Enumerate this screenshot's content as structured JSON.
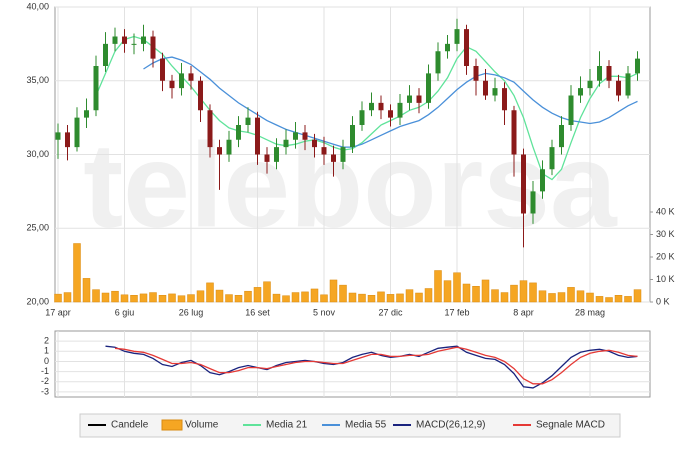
{
  "watermark": "teleborsa",
  "chart_data": [
    {
      "type": "candlestick",
      "candle_name": "Candele",
      "up_color": "#2e8b2e",
      "down_color": "#8b1a1a",
      "categories": [
        "17 apr",
        null,
        null,
        null,
        null,
        null,
        null,
        "6 giu",
        null,
        null,
        null,
        null,
        null,
        null,
        "26 lug",
        null,
        null,
        null,
        null,
        null,
        null,
        "16 set",
        null,
        null,
        null,
        null,
        null,
        null,
        "5 nov",
        null,
        null,
        null,
        null,
        null,
        null,
        "27 dic",
        null,
        null,
        null,
        null,
        null,
        null,
        "17 feb",
        null,
        null,
        null,
        null,
        null,
        null,
        "8 apr",
        null,
        null,
        null,
        null,
        null,
        null,
        "28 mag",
        null,
        null,
        null,
        null,
        null
      ],
      "open": [
        31,
        31.5,
        30.5,
        32.5,
        33,
        36,
        37.5,
        38,
        37.5,
        37.5,
        38,
        36.5,
        35,
        34.5,
        35.5,
        35,
        33,
        30.5,
        30,
        31,
        32,
        32.5,
        30,
        29.5,
        30.5,
        31,
        31.5,
        31,
        30.5,
        30,
        29.5,
        30.5,
        32,
        33,
        33.5,
        33,
        32.5,
        33.5,
        34,
        33.5,
        35.5,
        37,
        37.5,
        38.5,
        36,
        35,
        34,
        34.5,
        33,
        30,
        26,
        27.5,
        29,
        30.5,
        32,
        34,
        34.5,
        35,
        36,
        35,
        34,
        35.5
      ],
      "high": [
        32.1,
        32,
        33.2,
        33.8,
        36.7,
        38.3,
        38.6,
        38.5,
        38.2,
        38.8,
        38.4,
        36.9,
        35.4,
        36.2,
        36,
        35.3,
        33.4,
        31,
        31.6,
        32.6,
        33.2,
        32.9,
        30.5,
        31.1,
        31.7,
        32.2,
        32,
        31.4,
        31.2,
        30.6,
        31,
        32.6,
        33.6,
        34.2,
        34,
        33.4,
        34.1,
        34.7,
        34.5,
        36.1,
        37.6,
        38.1,
        39.2,
        38.8,
        36.5,
        35.8,
        35.2,
        34.9,
        33.3,
        30.4,
        28.2,
        29.6,
        31,
        32.6,
        34.7,
        35.3,
        35.8,
        37,
        36.4,
        35.4,
        36,
        37
      ],
      "low": [
        29.7,
        29.6,
        30.2,
        31.8,
        32.6,
        35.6,
        37,
        36.9,
        36.8,
        37,
        35.9,
        34.3,
        33.8,
        34,
        34.4,
        32.2,
        29.8,
        27.6,
        29.5,
        30.5,
        31.5,
        29.3,
        28.7,
        29,
        30,
        30.4,
        30.3,
        29.8,
        29.3,
        28.5,
        29,
        30.1,
        31.6,
        32.6,
        32.4,
        31.9,
        32,
        33,
        32.8,
        33.1,
        35,
        36.5,
        37,
        35.4,
        34,
        33.7,
        33.6,
        32,
        28.5,
        23.7,
        25.3,
        27,
        28.6,
        30,
        31.6,
        33.5,
        34,
        34.6,
        34.5,
        33.6,
        33.8,
        35
      ],
      "close": [
        31.5,
        30.5,
        32.5,
        33,
        36,
        37.5,
        38,
        37.5,
        37.5,
        38,
        36.5,
        35,
        34.5,
        35.5,
        35,
        33,
        30.5,
        30,
        31,
        32,
        32.5,
        30,
        29.5,
        30.5,
        31,
        31.5,
        31,
        30.5,
        30,
        29.5,
        30.5,
        32,
        33,
        33.5,
        33,
        32.5,
        33.5,
        34,
        33.5,
        35.5,
        37,
        37.5,
        38.5,
        36,
        35,
        34,
        34.5,
        33,
        30,
        26,
        27.5,
        29,
        30.5,
        32,
        34,
        34.5,
        35,
        36,
        35,
        34,
        35.5,
        36.5
      ],
      "ylim": [
        20,
        40
      ],
      "yticks": [
        {
          "value": 20,
          "label": "20,00"
        },
        {
          "value": 25,
          "label": "25,00"
        },
        {
          "value": 30,
          "label": "30,00"
        },
        {
          "value": 35,
          "label": "35,00"
        },
        {
          "value": 40,
          "label": "40,00"
        }
      ],
      "grid": true,
      "volume": {
        "name": "Volume",
        "color": "#f5a623",
        "values": [
          3500,
          4200,
          26000,
          10500,
          5500,
          4000,
          4800,
          3200,
          3000,
          3600,
          4200,
          3000,
          3600,
          2800,
          3300,
          5000,
          8500,
          5300,
          3300,
          3000,
          4800,
          6500,
          9000,
          3500,
          2800,
          4200,
          4500,
          5800,
          3200,
          9800,
          7500,
          4000,
          3500,
          3000,
          4500,
          3400,
          3600,
          5500,
          4000,
          6000,
          14000,
          9500,
          13000,
          8000,
          7000,
          9800,
          5500,
          4200,
          7500,
          9500,
          8500,
          5000,
          3800,
          4200,
          6500,
          5000,
          4000,
          2500,
          2000,
          3000,
          2500,
          5500
        ],
        "ylim": [
          0,
          40000
        ],
        "yticks": [
          {
            "value": 0,
            "label": "0 K"
          },
          {
            "value": 10000,
            "label": "10 K"
          },
          {
            "value": 20000,
            "label": "20 K"
          },
          {
            "value": 30000,
            "label": "30 K"
          },
          {
            "value": 40000,
            "label": "40 K"
          }
        ]
      },
      "series": [
        {
          "name": "Media 21",
          "color": "#5fe39a",
          "values": [
            null,
            null,
            null,
            null,
            34,
            35.5,
            37,
            37.8,
            38,
            37.8,
            37.3,
            36.8,
            36,
            35.3,
            34.6,
            33.8,
            33,
            32.3,
            31.8,
            31.6,
            31.5,
            31.3,
            31,
            30.7,
            30.6,
            30.7,
            30.9,
            31,
            30.8,
            30.5,
            30.3,
            30.4,
            30.8,
            31.4,
            32,
            32.3,
            32.6,
            33,
            33.2,
            33.6,
            34.3,
            35.2,
            36.5,
            37.3,
            37,
            36.3,
            35.6,
            35,
            34,
            32.5,
            30.5,
            28.7,
            28.3,
            29,
            30.8,
            32.5,
            33.8,
            34.8,
            35.3,
            35.3,
            35.2,
            35.5
          ]
        },
        {
          "name": "Media 55",
          "color": "#4a90d9",
          "values": [
            null,
            null,
            null,
            null,
            null,
            null,
            null,
            null,
            null,
            35.8,
            36.2,
            36.5,
            36.6,
            36.4,
            36.1,
            35.6,
            35.1,
            34.5,
            34,
            33.5,
            33.1,
            32.7,
            32.3,
            32,
            31.7,
            31.5,
            31.3,
            31.1,
            30.9,
            30.7,
            30.5,
            30.5,
            30.7,
            31,
            31.3,
            31.6,
            31.9,
            32.1,
            32.3,
            32.7,
            33.2,
            33.8,
            34.4,
            34.9,
            35.3,
            35.5,
            35.4,
            35.2,
            34.9,
            34.3,
            33.7,
            33.2,
            32.8,
            32.5,
            32.3,
            32.2,
            32.1,
            32.2,
            32.5,
            32.9,
            33.3,
            33.6
          ]
        }
      ]
    },
    {
      "type": "line",
      "ylim": [
        -3.5,
        3
      ],
      "yticks": [
        2,
        1,
        0,
        -1,
        -2,
        -3
      ],
      "grid": true,
      "series": [
        {
          "name": "MACD(26,12,9)",
          "color": "#1a237e",
          "values": [
            null,
            null,
            null,
            null,
            null,
            1.5,
            1.4,
            1,
            0.8,
            0.7,
            0.3,
            -0.3,
            -0.5,
            -0.1,
            0.1,
            -0.4,
            -1.1,
            -1.3,
            -1,
            -0.6,
            -0.4,
            -0.6,
            -0.8,
            -0.4,
            -0.1,
            0,
            0.1,
            0,
            -0.2,
            -0.3,
            -0.1,
            0.4,
            0.7,
            0.9,
            0.6,
            0.4,
            0.5,
            0.7,
            0.5,
            0.9,
            1.3,
            1.4,
            1.5,
            0.9,
            0.6,
            0.3,
            0.2,
            -0.3,
            -1.2,
            -2.5,
            -2.6,
            -2.1,
            -1.4,
            -0.5,
            0.4,
            0.9,
            1.1,
            1.2,
            1,
            0.6,
            0.4,
            0.5
          ]
        },
        {
          "name": "Segnale MACD",
          "color": "#e53935",
          "values": [
            null,
            null,
            null,
            null,
            null,
            null,
            1.3,
            1.2,
            1,
            0.9,
            0.6,
            0.2,
            -0.2,
            -0.2,
            -0.1,
            -0.3,
            -0.7,
            -1.1,
            -1.1,
            -0.9,
            -0.6,
            -0.6,
            -0.7,
            -0.5,
            -0.3,
            -0.1,
            0,
            0,
            -0.1,
            -0.2,
            -0.2,
            0.1,
            0.4,
            0.7,
            0.7,
            0.5,
            0.5,
            0.6,
            0.6,
            0.7,
            1,
            1.2,
            1.4,
            1.2,
            0.9,
            0.6,
            0.4,
            0,
            -0.7,
            -1.7,
            -2.2,
            -2.2,
            -1.8,
            -1.1,
            -0.3,
            0.4,
            0.8,
            1,
            1.1,
            0.9,
            0.6,
            0.5
          ]
        }
      ]
    }
  ]
}
